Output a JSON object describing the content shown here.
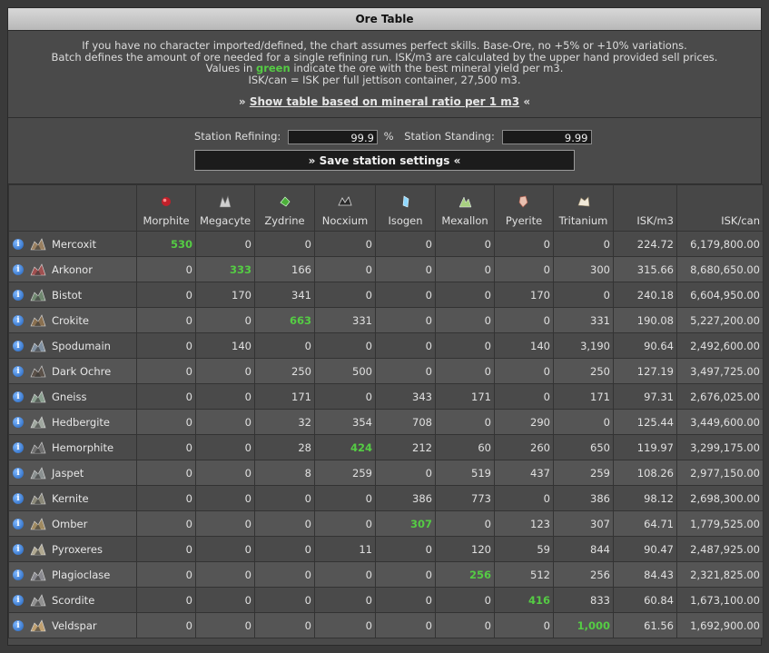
{
  "title": "Ore Table",
  "info": {
    "line1": "If you have no character imported/defined, the chart assumes perfect skills. Base-Ore, no +5% or +10% variations.",
    "line2": "Batch defines the amount of ore needed for a single refining run. ISK/m3 are calculated by the upper hand provided sell prices.",
    "line3_pre": "Values in ",
    "line3_green": "green",
    "line3_post": " indicate the ore with the best mineral yield per m3.",
    "line4": "ISK/can = ISK per full jettison container, 27,500 m3.",
    "link_prefix": "» ",
    "link_text": "Show table based on mineral ratio per 1 m3",
    "link_suffix": " «"
  },
  "settings": {
    "refining_label": "Station Refining:",
    "refining_value": "99.9",
    "refining_unit": "%",
    "standing_label": "Station Standing:",
    "standing_value": "9.99",
    "save_label": "» Save station settings «"
  },
  "colors": {
    "best": "#55cc44"
  },
  "columns": [
    "Morphite",
    "Megacyte",
    "Zydrine",
    "Nocxium",
    "Isogen",
    "Mexallon",
    "Pyerite",
    "Tritanium",
    "ISK/m3",
    "ISK/can"
  ],
  "mineral_icons": [
    "morphite-icon",
    "megacyte-icon",
    "zydrine-icon",
    "nocxium-icon",
    "isogen-icon",
    "mexallon-icon",
    "pyerite-icon",
    "tritanium-icon"
  ],
  "rows": [
    {
      "name": "Mercoxit",
      "vals": [
        "530",
        "0",
        "0",
        "0",
        "0",
        "0",
        "0",
        "0"
      ],
      "isk_m3": "224.72",
      "isk_can": "6,179,800.00",
      "best": 0
    },
    {
      "name": "Arkonor",
      "vals": [
        "0",
        "333",
        "166",
        "0",
        "0",
        "0",
        "0",
        "300"
      ],
      "isk_m3": "315.66",
      "isk_can": "8,680,650.00",
      "best": 1
    },
    {
      "name": "Bistot",
      "vals": [
        "0",
        "170",
        "341",
        "0",
        "0",
        "0",
        "170",
        "0"
      ],
      "isk_m3": "240.18",
      "isk_can": "6,604,950.00",
      "best": -1
    },
    {
      "name": "Crokite",
      "vals": [
        "0",
        "0",
        "663",
        "331",
        "0",
        "0",
        "0",
        "331"
      ],
      "isk_m3": "190.08",
      "isk_can": "5,227,200.00",
      "best": 2
    },
    {
      "name": "Spodumain",
      "vals": [
        "0",
        "140",
        "0",
        "0",
        "0",
        "0",
        "140",
        "3,190"
      ],
      "isk_m3": "90.64",
      "isk_can": "2,492,600.00",
      "best": -1
    },
    {
      "name": "Dark Ochre",
      "vals": [
        "0",
        "0",
        "250",
        "500",
        "0",
        "0",
        "0",
        "250"
      ],
      "isk_m3": "127.19",
      "isk_can": "3,497,725.00",
      "best": -1
    },
    {
      "name": "Gneiss",
      "vals": [
        "0",
        "0",
        "171",
        "0",
        "343",
        "171",
        "0",
        "171"
      ],
      "isk_m3": "97.31",
      "isk_can": "2,676,025.00",
      "best": -1
    },
    {
      "name": "Hedbergite",
      "vals": [
        "0",
        "0",
        "32",
        "354",
        "708",
        "0",
        "290",
        "0"
      ],
      "isk_m3": "125.44",
      "isk_can": "3,449,600.00",
      "best": -1
    },
    {
      "name": "Hemorphite",
      "vals": [
        "0",
        "0",
        "28",
        "424",
        "212",
        "60",
        "260",
        "650"
      ],
      "isk_m3": "119.97",
      "isk_can": "3,299,175.00",
      "best": 3
    },
    {
      "name": "Jaspet",
      "vals": [
        "0",
        "0",
        "8",
        "259",
        "0",
        "519",
        "437",
        "259"
      ],
      "isk_m3": "108.26",
      "isk_can": "2,977,150.00",
      "best": -1
    },
    {
      "name": "Kernite",
      "vals": [
        "0",
        "0",
        "0",
        "0",
        "386",
        "773",
        "0",
        "386"
      ],
      "isk_m3": "98.12",
      "isk_can": "2,698,300.00",
      "best": -1
    },
    {
      "name": "Omber",
      "vals": [
        "0",
        "0",
        "0",
        "0",
        "307",
        "0",
        "123",
        "307"
      ],
      "isk_m3": "64.71",
      "isk_can": "1,779,525.00",
      "best": 4
    },
    {
      "name": "Pyroxeres",
      "vals": [
        "0",
        "0",
        "0",
        "11",
        "0",
        "120",
        "59",
        "844"
      ],
      "isk_m3": "90.47",
      "isk_can": "2,487,925.00",
      "best": -1
    },
    {
      "name": "Plagioclase",
      "vals": [
        "0",
        "0",
        "0",
        "0",
        "0",
        "256",
        "512",
        "256"
      ],
      "isk_m3": "84.43",
      "isk_can": "2,321,825.00",
      "best": 5
    },
    {
      "name": "Scordite",
      "vals": [
        "0",
        "0",
        "0",
        "0",
        "0",
        "0",
        "416",
        "833"
      ],
      "isk_m3": "60.84",
      "isk_can": "1,673,100.00",
      "best": 6
    },
    {
      "name": "Veldspar",
      "vals": [
        "0",
        "0",
        "0",
        "0",
        "0",
        "0",
        "0",
        "1,000"
      ],
      "isk_m3": "61.56",
      "isk_can": "1,692,900.00",
      "best": 7
    }
  ]
}
